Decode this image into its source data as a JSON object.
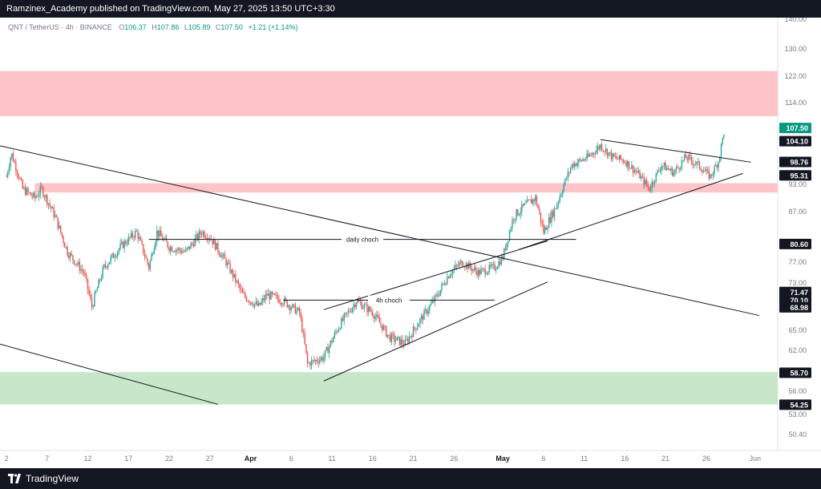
{
  "header": {
    "publisher_line": "Ramzinex_Academy published on TradingView.com, May 27, 2025 13:50 UTC+3:30"
  },
  "legend": {
    "symbol": "QNT / TetherUS · 4h · BINANCE",
    "open_label": "O",
    "open": "106.37",
    "high_label": "H",
    "high": "107.86",
    "low_label": "L",
    "low": "105.89",
    "close_label": "C",
    "close": "107.50",
    "change": "+1.21 (+1.14%)"
  },
  "footer": {
    "brand": "TradingView",
    "brand_icon": "tradingview-logo-icon"
  },
  "colors": {
    "up": "#26a69a",
    "down": "#ef5350",
    "supply_zone": "#fdc5c8",
    "demand_zone": "#c8e6c9",
    "price_badge": "#089981",
    "level_badge": "#131722"
  },
  "chart_data": {
    "type": "candlestick",
    "title": "QNT / TetherUS · 4h · BINANCE",
    "ylim": [
      47.5,
      140
    ],
    "y_ticks": [
      "140.00",
      "130.00",
      "122.00",
      "114.00",
      "93.00",
      "87.00",
      "77.00",
      "73.00",
      "65.00",
      "62.00",
      "56.00",
      "53.00",
      "50.40"
    ],
    "x_ticks": [
      "2",
      "7",
      "12",
      "17",
      "22",
      "27",
      "Apr",
      "6",
      "11",
      "16",
      "21",
      "26",
      "May",
      "6",
      "11",
      "16",
      "21",
      "26",
      "Jun"
    ],
    "x_tick_days": [
      0,
      5,
      10,
      15,
      20,
      25,
      30,
      35,
      40,
      45,
      50,
      55,
      61,
      66,
      71,
      76,
      81,
      86,
      92
    ],
    "price_path": [
      [
        0,
        95
      ],
      [
        0.6,
        101
      ],
      [
        2,
        92
      ],
      [
        3.5,
        90
      ],
      [
        4.3,
        92
      ],
      [
        6,
        86
      ],
      [
        7.5,
        79
      ],
      [
        9.5,
        75
      ],
      [
        10.5,
        69
      ],
      [
        12,
        76
      ],
      [
        14,
        80
      ],
      [
        16,
        83
      ],
      [
        17.5,
        76
      ],
      [
        18.5,
        83
      ],
      [
        20,
        80
      ],
      [
        22,
        79
      ],
      [
        24,
        83
      ],
      [
        25,
        82
      ],
      [
        27,
        77
      ],
      [
        29,
        71
      ],
      [
        31,
        69
      ],
      [
        32,
        71
      ],
      [
        34,
        70
      ],
      [
        36,
        68
      ],
      [
        37,
        60
      ],
      [
        39,
        61
      ],
      [
        41,
        66
      ],
      [
        43,
        70
      ],
      [
        45,
        68
      ],
      [
        47,
        64
      ],
      [
        49,
        63
      ],
      [
        51,
        67
      ],
      [
        53,
        71
      ],
      [
        54.5,
        75
      ],
      [
        56,
        77
      ],
      [
        58,
        75
      ],
      [
        60,
        76
      ],
      [
        61,
        78
      ],
      [
        62.3,
        86
      ],
      [
        63.5,
        88
      ],
      [
        65,
        90
      ],
      [
        66,
        83
      ],
      [
        67.5,
        88
      ],
      [
        69.5,
        98
      ],
      [
        71.5,
        100
      ],
      [
        73,
        103
      ],
      [
        74.5,
        100
      ],
      [
        76,
        99
      ],
      [
        77.5,
        96
      ],
      [
        79,
        92
      ],
      [
        80.5,
        98
      ],
      [
        82,
        96
      ],
      [
        83.5,
        100
      ],
      [
        85,
        98
      ],
      [
        86.5,
        95
      ],
      [
        87.5,
        99
      ],
      [
        88.3,
        108
      ]
    ],
    "horizontal_levels": [
      {
        "label": "107.50",
        "value": 107.5,
        "style": "price"
      },
      {
        "label": "104.10",
        "value": 104.1,
        "style": "level"
      },
      {
        "label": "98.76",
        "value": 98.76,
        "style": "level"
      },
      {
        "label": "95.31",
        "value": 95.31,
        "style": "level"
      },
      {
        "label": "80.60",
        "value": 80.6,
        "style": "level"
      },
      {
        "label": "71.47",
        "value": 71.47,
        "style": "level"
      },
      {
        "label": "70.10",
        "value": 70.1,
        "style": "level"
      },
      {
        "label": "68.98",
        "value": 68.98,
        "style": "level"
      },
      {
        "label": "58.70",
        "value": 58.7,
        "style": "level"
      },
      {
        "label": "54.25",
        "value": 54.25,
        "style": "level"
      }
    ],
    "zones": [
      {
        "name": "upper supply zone",
        "day_start": -1,
        "day_end": 97,
        "y_low": 110.5,
        "y_high": 123.5,
        "color": "supply_zone"
      },
      {
        "name": "middle supply zone",
        "day_start": 3.5,
        "day_end": 95,
        "y_low": 91.2,
        "y_high": 93.3,
        "color": "supply_zone"
      },
      {
        "name": "demand zone",
        "day_start": -1,
        "day_end": 97,
        "y_low": 54.3,
        "y_high": 58.8,
        "color": "demand_zone"
      }
    ],
    "trendlines": [
      {
        "name": "descending trendline upper",
        "from": [
          -1,
          103
        ],
        "to": [
          92.5,
          67.5
        ]
      },
      {
        "name": "descending trendline lower",
        "from": [
          -1,
          63
        ],
        "to": [
          26,
          54.3
        ]
      },
      {
        "name": "channel upper line",
        "from": [
          39,
          68.5
        ],
        "to": [
          66.5,
          81.2
        ]
      },
      {
        "name": "channel lower line",
        "from": [
          39,
          57.5
        ],
        "to": [
          66.5,
          73.2
        ]
      },
      {
        "name": "wedge upper line",
        "from": [
          73,
          104.5
        ],
        "to": [
          91.5,
          98.7
        ]
      },
      {
        "name": "wedge lower line",
        "from": [
          63,
          79.5
        ],
        "to": [
          90.5,
          95.8
        ]
      }
    ],
    "annotations": [
      {
        "label": "daily choch",
        "day_start": 17.5,
        "day_end": 70,
        "value": 81.5
      },
      {
        "label": "4h choch",
        "day_start": 34,
        "day_end": 60,
        "value": 70.1
      }
    ]
  }
}
